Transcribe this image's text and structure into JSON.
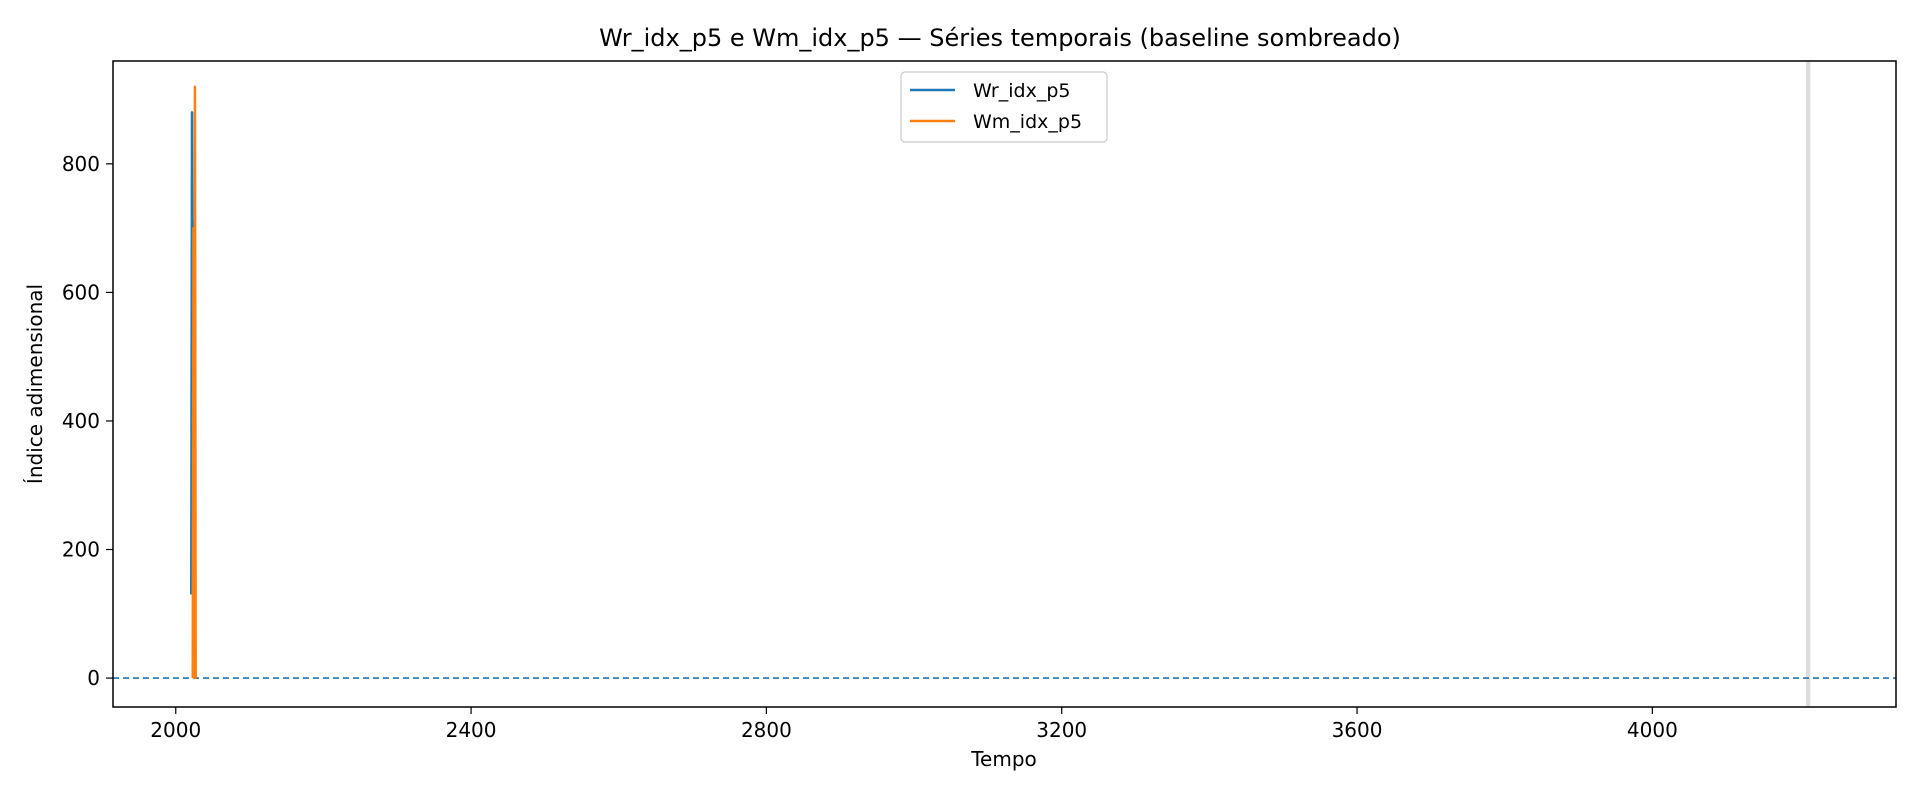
{
  "chart_data": {
    "type": "line",
    "title": "Wr_idx_p5 e Wm_idx_p5 — Séries temporais (baseline sombreado)",
    "xlabel": "Tempo",
    "ylabel": "Índice adimensional",
    "xlim": [
      1915,
      4330
    ],
    "ylim": [
      -45,
      960
    ],
    "xticks": [
      2000,
      2400,
      2800,
      3200,
      3600,
      4000
    ],
    "yticks": [
      0,
      200,
      400,
      600,
      800
    ],
    "grid": false,
    "legend_position": "top-center",
    "series": [
      {
        "name": "Wr_idx_p5",
        "color": "#1f77b4",
        "x": [
          2021,
          2022,
          2023,
          2024,
          2025
        ],
        "y": [
          130,
          880,
          180,
          710,
          140
        ]
      },
      {
        "name": "Wm_idx_p5",
        "color": "#ff7f0e",
        "x": [
          2023,
          2024,
          2025,
          2026,
          2027
        ],
        "y": [
          0,
          700,
          0,
          920,
          0
        ]
      }
    ],
    "reference_lines": [
      {
        "type": "horizontal",
        "y": 0,
        "style": "dashed",
        "color": "#1f77b4"
      }
    ],
    "shaded_regions": [
      {
        "x0": 4208,
        "x1": 4214,
        "color": "#dddddd"
      }
    ]
  }
}
